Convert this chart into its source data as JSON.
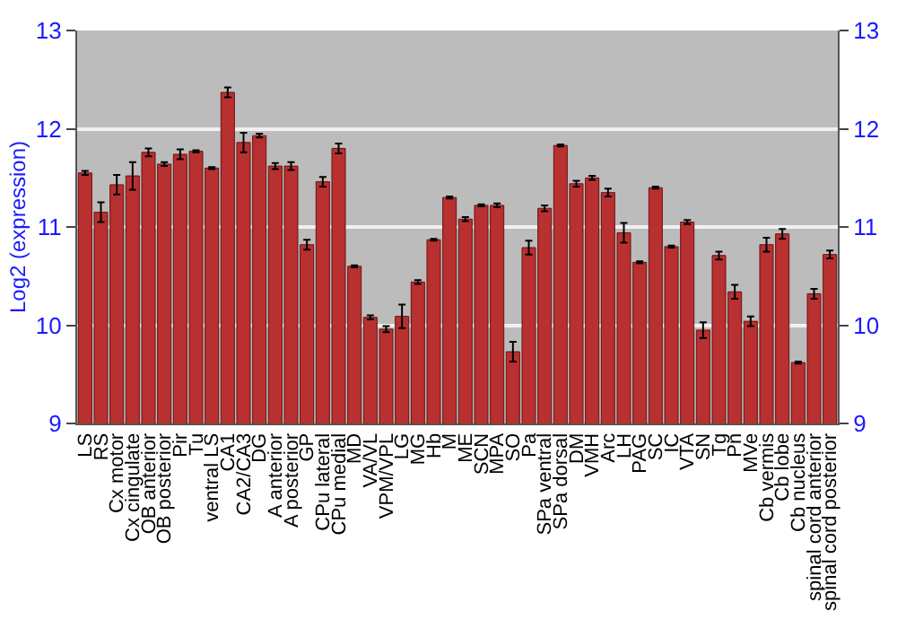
{
  "chart_data": {
    "type": "bar",
    "ylabel": "Log2 (expression)",
    "categories": [
      "LS",
      "RS",
      "Cx motor",
      "Cx cingulate",
      "OB anterior",
      "OB posterior",
      "Pir",
      "Tu",
      "ventral LS",
      "CA1",
      "CA2/CA3",
      "DG",
      "A anterior",
      "A posterior",
      "GP",
      "CPu lateral",
      "CPu medial",
      "MD",
      "VA/VL",
      "VPM/VPL",
      "LG",
      "MG",
      "Hb",
      "M",
      "ME",
      "SCN",
      "MPA",
      "SO",
      "Pa",
      "SPa ventral",
      "SPa dorsal",
      "DM",
      "VMH",
      "Arc",
      "LH",
      "PAG",
      "SC",
      "IC",
      "VTA",
      "SN",
      "Tg",
      "Pn",
      "MVe",
      "Cb vermis",
      "Cb lobe",
      "Cb nucleus",
      "spinal cord anterior",
      "spinal cord posterior"
    ],
    "values": [
      11.55,
      11.15,
      11.43,
      11.52,
      11.76,
      11.64,
      11.74,
      11.77,
      11.6,
      12.37,
      11.86,
      11.93,
      11.62,
      11.62,
      10.82,
      11.46,
      11.8,
      10.6,
      10.08,
      9.96,
      10.09,
      10.44,
      10.87,
      11.3,
      11.08,
      11.22,
      11.22,
      9.73,
      10.79,
      11.19,
      11.83,
      11.44,
      11.5,
      11.35,
      10.94,
      10.64,
      11.4,
      10.8,
      11.05,
      9.95,
      10.71,
      10.34,
      10.04,
      10.82,
      10.93,
      9.62,
      10.32,
      10.72
    ],
    "errors": [
      0.02,
      0.1,
      0.1,
      0.14,
      0.04,
      0.02,
      0.05,
      0.01,
      0.01,
      0.05,
      0.1,
      0.02,
      0.03,
      0.04,
      0.05,
      0.05,
      0.05,
      0.01,
      0.02,
      0.03,
      0.12,
      0.02,
      0.01,
      0.01,
      0.02,
      0.01,
      0.02,
      0.1,
      0.07,
      0.03,
      0.01,
      0.03,
      0.02,
      0.04,
      0.1,
      0.01,
      0.01,
      0.01,
      0.02,
      0.08,
      0.04,
      0.07,
      0.05,
      0.07,
      0.05,
      0.01,
      0.05,
      0.04
    ],
    "color": "#b83030",
    "ylim": [
      9,
      13
    ],
    "yticks": [
      9,
      10,
      11,
      12,
      13
    ],
    "y2lim": [
      9,
      13
    ],
    "y2ticks": [
      9,
      10,
      11,
      12,
      13
    ],
    "grid": "y"
  }
}
